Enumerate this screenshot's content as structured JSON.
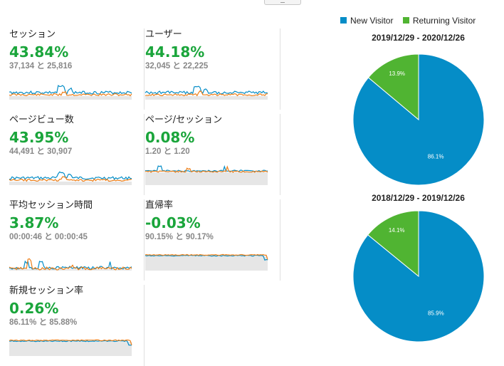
{
  "metrics": [
    {
      "title": "セッション",
      "value": "43.84%",
      "compare": "37,134 と 25,816",
      "spark": "traffic"
    },
    {
      "title": "ユーザー",
      "value": "44.18%",
      "compare": "32,045 と 22,225",
      "spark": "traffic"
    },
    {
      "title": "ページビュー数",
      "value": "43.95%",
      "compare": "44,491 と 30,907",
      "spark": "traffic"
    },
    {
      "title": "ページ/セッション",
      "value": "0.08%",
      "compare": "1.20 と 1.20",
      "spark": "flat"
    },
    {
      "title": "平均セッション時間",
      "value": "3.87%",
      "compare": "00:00:46 と 00:00:45",
      "spark": "noisy"
    },
    {
      "title": "直帰率",
      "value": "-0.03%",
      "compare": "90.15% と 90.17%",
      "spark": "high"
    },
    {
      "title": "新規セッション率",
      "value": "0.26%",
      "compare": "86.11% と 85.88%",
      "spark": "high"
    }
  ],
  "legend": [
    {
      "label": "New Visitor",
      "color": "#058dc7"
    },
    {
      "label": "Returning Visitor",
      "color": "#50b432"
    }
  ],
  "colors": {
    "value_green": "#1aa53b",
    "spark_blue": "#058dc7",
    "spark_orange": "#ed7e17",
    "spark_fill": "#e6e6e6"
  },
  "chart_data": [
    {
      "type": "pie",
      "title": "2019/12/29 - 2020/12/26",
      "labels": [
        "New Visitor",
        "Returning Visitor"
      ],
      "values": [
        86.1,
        13.9
      ],
      "data_labels": [
        "86.1%",
        "13.9%"
      ]
    },
    {
      "type": "pie",
      "title": "2018/12/29 - 2019/12/26",
      "labels": [
        "New Visitor",
        "Returning Visitor"
      ],
      "values": [
        85.9,
        14.1
      ],
      "data_labels": [
        "85.9%",
        "14.1%"
      ]
    }
  ]
}
